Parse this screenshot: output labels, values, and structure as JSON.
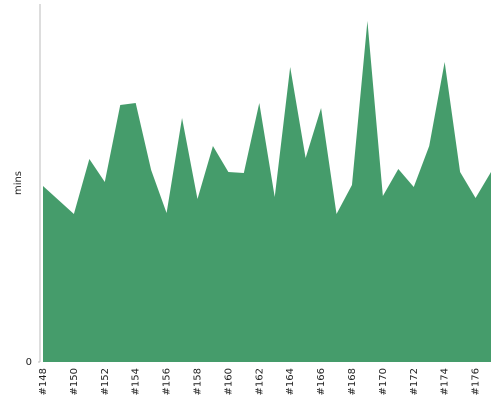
{
  "chart_data": {
    "type": "area",
    "y_label": "mins",
    "color": "#459c6b",
    "categories": [
      "#148",
      null,
      "#150",
      null,
      "#152",
      null,
      "#154",
      null,
      "#156",
      null,
      "#158",
      null,
      "#160",
      null,
      "#162",
      null,
      "#164",
      null,
      "#166",
      null,
      "#168",
      null,
      "#170",
      null,
      "#172",
      null,
      "#174",
      null,
      "#176",
      null
    ],
    "values": [
      176,
      162,
      148,
      203,
      180,
      257,
      259,
      192,
      149,
      244,
      163,
      216,
      190,
      189,
      259,
      165,
      295,
      204,
      254,
      148,
      177,
      341,
      166,
      193,
      175,
      216,
      300,
      190,
      164,
      190
    ],
    "ylim": [
      0,
      358
    ],
    "yticks": [
      0
    ]
  }
}
